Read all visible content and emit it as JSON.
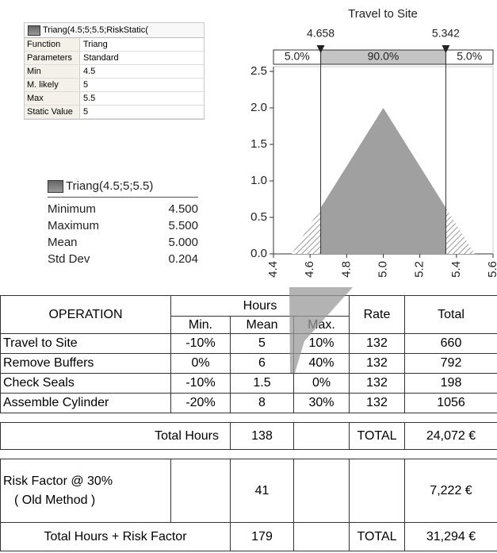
{
  "property_panel": {
    "title": "Triang(4.5;5;5.5;RiskStatic(",
    "rows": [
      [
        "Function",
        "Triang"
      ],
      [
        "Parameters",
        "Standard"
      ],
      [
        "Min",
        "4.5"
      ],
      [
        "M. likely",
        "5"
      ],
      [
        "Max",
        "5.5"
      ],
      [
        "Static Value",
        "5"
      ]
    ]
  },
  "stats_panel": {
    "title": "Triang(4.5;5;5.5)",
    "rows": [
      [
        "Minimum",
        "4.500"
      ],
      [
        "Maximum",
        "5.500"
      ],
      [
        "Mean",
        "5.000"
      ],
      [
        "Std Dev",
        "0.204"
      ]
    ]
  },
  "chart_data": {
    "type": "area",
    "title": "Travel to Site",
    "x": [
      4.5,
      5.0,
      5.5
    ],
    "values": [
      0,
      2,
      0
    ],
    "color": "#a0a0a0",
    "markers": [
      4.658,
      5.342
    ],
    "band_labels": [
      "5.0%",
      "90.0%",
      "5.0%"
    ],
    "xlim": [
      4.4,
      5.6
    ],
    "xticks": [
      4.4,
      4.6,
      4.8,
      {
        "value": 5,
        "label": "5.0"
      },
      5.2,
      5.4,
      5.6
    ],
    "ylim": [
      0,
      2.5
    ],
    "yticks": [
      {
        "value": 0,
        "label": "0.0"
      },
      0.5,
      {
        "value": 1,
        "label": "1.0"
      },
      1.5,
      {
        "value": 2,
        "label": "2.0"
      },
      2.5
    ]
  },
  "table": {
    "header": [
      "OPERATION",
      "Hours",
      "Rate",
      "Total"
    ],
    "subheader": [
      "Min.",
      "Mean",
      "Max."
    ],
    "rows": [
      [
        "Travel to Site",
        "-10%",
        "5",
        "10%",
        "132",
        "660"
      ],
      [
        "Remove Buffers",
        "0%",
        "6",
        "40%",
        "132",
        "792"
      ],
      [
        "Check Seals",
        "-10%",
        "1.5",
        "0%",
        "132",
        "198"
      ],
      [
        "Assemble Cylinder",
        "-20%",
        "8",
        "30%",
        "132",
        "1056"
      ]
    ],
    "total_hours": {
      "label": "Total Hours",
      "mean": "138",
      "rate": "TOTAL",
      "total": "24,072 €"
    },
    "risk": {
      "label": [
        "Risk Factor @ 30%",
        "( Old Method )"
      ],
      "mean": "41",
      "total": "7,222 €"
    },
    "grand": {
      "label": "Total Hours + Risk Factor",
      "mean": "179",
      "rate": "TOTAL",
      "total": "31,294 €"
    }
  }
}
